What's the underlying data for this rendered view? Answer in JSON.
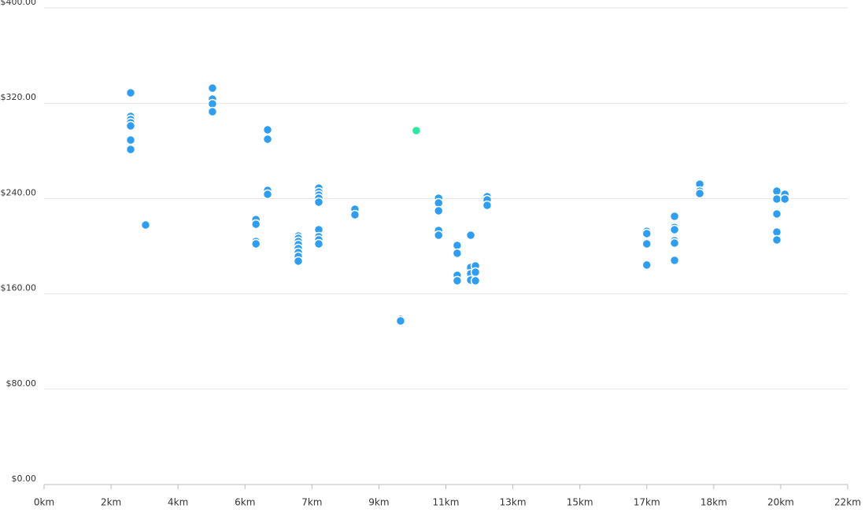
{
  "chart_data": {
    "type": "scatter",
    "series": [
      {
        "color": "#2f9ef0",
        "x": [
          2.37,
          2.37,
          2.37,
          2.37,
          2.37,
          2.37,
          2.37,
          2.78,
          4.61,
          4.61,
          4.61,
          4.61,
          6.12,
          6.12,
          6.12,
          6.12,
          5.8,
          5.8,
          5.8,
          5.8,
          6.96,
          6.96,
          6.96,
          6.96,
          6.96,
          6.96,
          6.96,
          6.96,
          7.52,
          7.52,
          7.52,
          7.52,
          7.52,
          7.52,
          7.52,
          7.52,
          7.52,
          8.51,
          8.51,
          9.76,
          9.76,
          10.8,
          10.8,
          10.8,
          10.8,
          10.8,
          11.31,
          11.31,
          11.31,
          11.31,
          11.68,
          11.68,
          11.68,
          11.68,
          11.81,
          11.81,
          11.81,
          12.13,
          12.13,
          12.13,
          16.5,
          16.5,
          16.5,
          16.5,
          17.26,
          17.26,
          17.26,
          17.26,
          17.26,
          17.26,
          17.95,
          17.95,
          17.95,
          20.06,
          20.06,
          20.06,
          20.06,
          20.06,
          20.28,
          20.28
        ],
        "values": [
          328.7,
          308.9,
          306.3,
          303.6,
          301,
          289.1,
          281.2,
          217.8,
          332.7,
          323.4,
          319.5,
          312.9,
          297.7,
          289.8,
          246.9,
          243.6,
          222.4,
          218.5,
          204,
          202,
          208.6,
          206.6,
          204,
          201.3,
          198,
          194.7,
          191.4,
          187.5,
          248.8,
          245.5,
          242.9,
          240.3,
          237,
          213.9,
          207.9,
          205.3,
          202,
          231,
          226.4,
          138.6,
          137.3,
          240.3,
          236.3,
          229.7,
          213.2,
          209.2,
          200.7,
          194.1,
          175.6,
          171,
          209.2,
          182.2,
          176.9,
          171.6,
          183.5,
          178.2,
          171,
          241.6,
          238.9,
          234.3,
          212.5,
          210.6,
          202,
          184.2,
          225.1,
          215.8,
          213.9,
          204.6,
          202.6,
          188.1,
          252.1,
          246.2,
          244.2,
          246.2,
          239.6,
          227.1,
          211.9,
          205.3,
          243.6,
          239.6
        ]
      },
      {
        "color": "#2ee6a0",
        "x": [
          10.19
        ],
        "values": [
          297
        ]
      }
    ],
    "xlim": [
      0,
      22
    ],
    "xticks": [
      0,
      {
        "value": 1.8333,
        "label": "2km"
      },
      {
        "value": 3.6667,
        "label": "4km"
      },
      {
        "value": 5.5,
        "label": "6km"
      },
      {
        "value": 7.3333,
        "label": "7km"
      },
      {
        "value": 9.1667,
        "label": "9km"
      },
      {
        "value": 11,
        "label": "11km"
      },
      {
        "value": 12.8333,
        "label": "13km"
      },
      {
        "value": 14.6667,
        "label": "15km"
      },
      {
        "value": 16.5,
        "label": "17km"
      },
      {
        "value": 18.3333,
        "label": "18km"
      },
      {
        "value": 20.1667,
        "label": "20km"
      },
      {
        "value": 22,
        "label": "22km"
      }
    ],
    "xzero_label": "0km",
    "ylim": [
      0,
      400
    ],
    "yticks": [
      {
        "value": 0,
        "label": "$0.00"
      },
      {
        "value": 80,
        "label": "$80.00"
      },
      {
        "value": 160,
        "label": "$160.00"
      },
      {
        "value": 240,
        "label": "$240.00"
      },
      {
        "value": 320,
        "label": "$320.00"
      },
      {
        "value": 400,
        "label": "$400.00"
      }
    ],
    "grid": true
  }
}
